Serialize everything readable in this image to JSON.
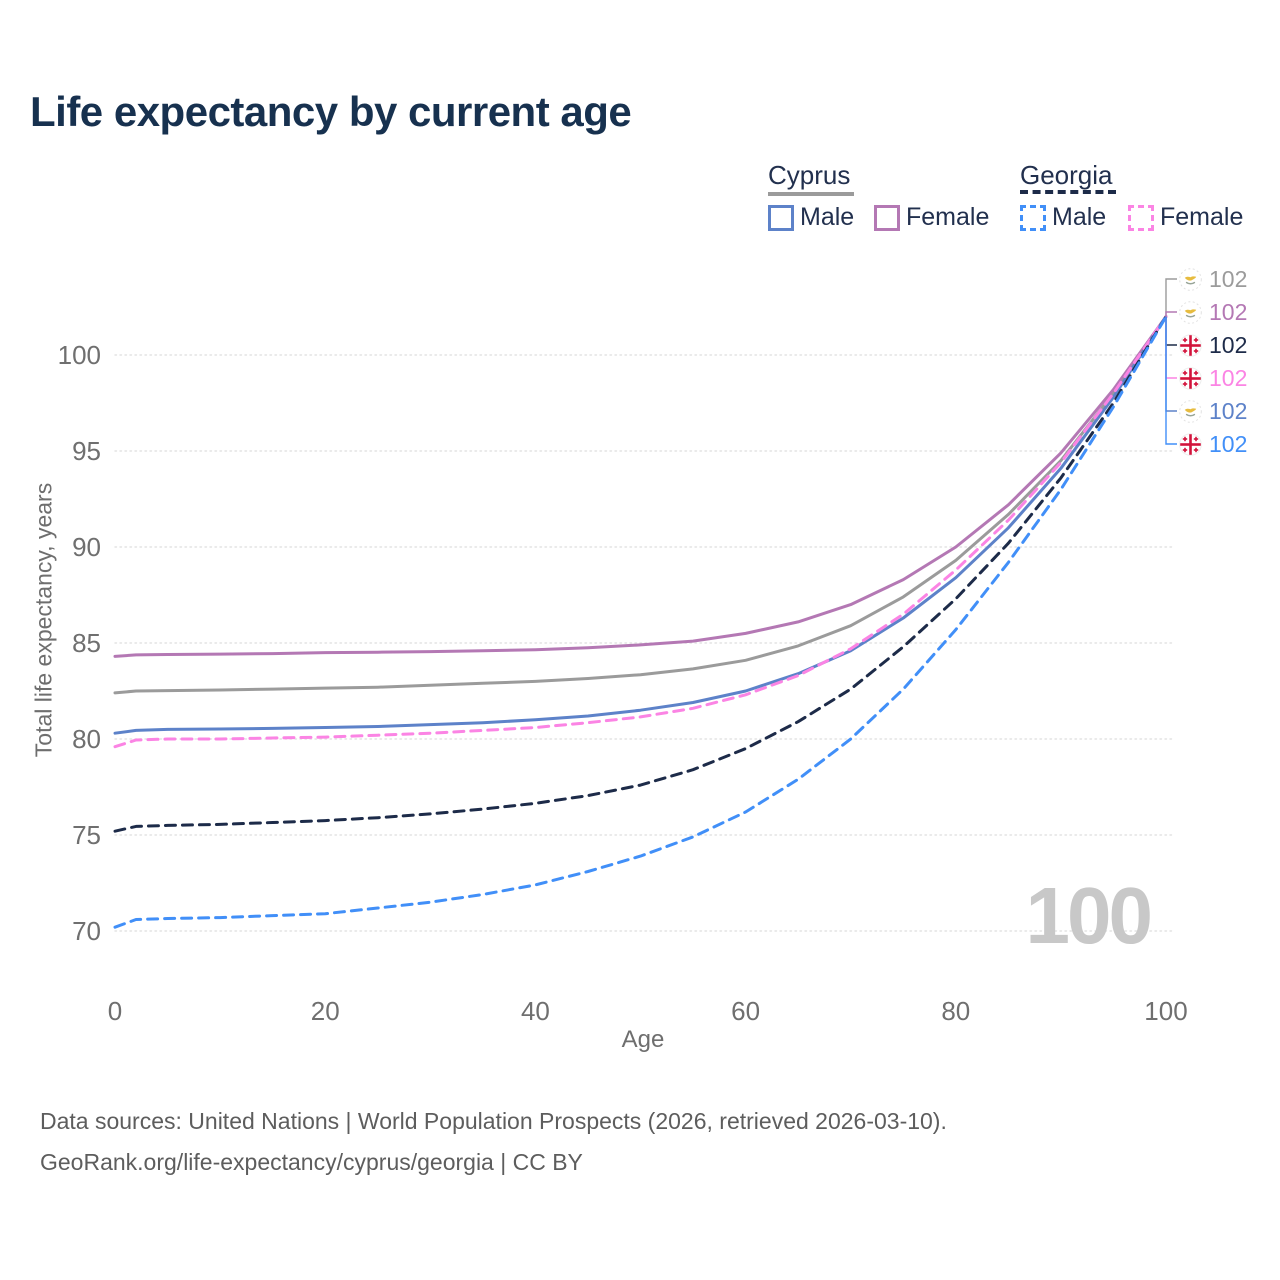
{
  "title": "Life expectancy by current age",
  "watermark_age": "100",
  "axes": {
    "y_title": "Total life expectancy, years",
    "x_title": "Age"
  },
  "colors": {
    "title": "#17314f",
    "tick": "#6f6f6f",
    "grid": "#e3e3e3",
    "watermark": "#c8c8c8",
    "cyprus_total": "#9b9b9b",
    "cyprus_female": "#b478b4",
    "cyprus_male": "#5d82c9",
    "georgia_total": "#1d2b49",
    "georgia_female": "#fb84e4",
    "georgia_male": "#418ff8",
    "georgia_flag_red": "#d2143c",
    "cyprus_flag_copper": "#e7bc3f"
  },
  "legend": {
    "groups": [
      {
        "label": "Cyprus",
        "underline": "solid",
        "color": "#9b9b9b",
        "items": [
          {
            "label": "Male",
            "color": "#5d82c9"
          },
          {
            "label": "Female",
            "color": "#b478b4"
          }
        ]
      },
      {
        "label": "Georgia",
        "underline": "dashed",
        "color": "#1d2b49",
        "items": [
          {
            "label": "Male",
            "color": "#418ff8"
          },
          {
            "label": "Female",
            "color": "#fb84e4"
          }
        ]
      }
    ]
  },
  "endpoint_labels": [
    {
      "flag": "cyprus",
      "series": "Cyprus total",
      "value": "102",
      "color": "#9b9b9b"
    },
    {
      "flag": "cyprus",
      "series": "Cyprus female",
      "value": "102",
      "color": "#b478b4"
    },
    {
      "flag": "georgia",
      "series": "Georgia total",
      "value": "102",
      "color": "#1d2b49"
    },
    {
      "flag": "georgia",
      "series": "Georgia female",
      "value": "102",
      "color": "#fb84e4"
    },
    {
      "flag": "cyprus",
      "series": "Cyprus male",
      "value": "102",
      "color": "#5d82c9"
    },
    {
      "flag": "georgia",
      "series": "Georgia male",
      "value": "102",
      "color": "#418ff8"
    }
  ],
  "source": {
    "line1": "Data sources: United Nations | World Population Prospects (2026, retrieved 2026-03-10).",
    "line2": "GeoRank.org/life-expectancy/cyprus/georgia | CC BY"
  },
  "chart_data": {
    "type": "line",
    "title": "Life expectancy by current age",
    "xlabel": "Age",
    "ylabel": "Total life expectancy, years",
    "xlim": [
      0,
      100
    ],
    "ylim": [
      69,
      102.5
    ],
    "xticks": [
      0,
      20,
      40,
      60,
      80,
      100
    ],
    "yticks": [
      70,
      75,
      80,
      85,
      90,
      95,
      100
    ],
    "grid": true,
    "legend_position": "top-right",
    "x": [
      0,
      2,
      5,
      10,
      15,
      20,
      25,
      30,
      35,
      40,
      45,
      50,
      55,
      60,
      65,
      70,
      75,
      80,
      85,
      90,
      95,
      100
    ],
    "series": [
      {
        "id": "cyprus_total",
        "name": "Cyprus total",
        "style": "solid",
        "color": "#9b9b9b",
        "values": [
          82.4,
          82.5,
          82.52,
          82.55,
          82.6,
          82.65,
          82.7,
          82.8,
          82.9,
          83.0,
          83.15,
          83.35,
          83.65,
          84.1,
          84.85,
          85.9,
          87.4,
          89.3,
          91.7,
          94.5,
          98.0,
          102
        ]
      },
      {
        "id": "cyprus_female",
        "name": "Cyprus female",
        "style": "solid",
        "color": "#b478b4",
        "values": [
          84.3,
          84.38,
          84.4,
          84.42,
          84.45,
          84.5,
          84.52,
          84.55,
          84.6,
          84.65,
          84.75,
          84.9,
          85.1,
          85.5,
          86.1,
          87.0,
          88.3,
          90.0,
          92.2,
          94.9,
          98.2,
          102
        ]
      },
      {
        "id": "cyprus_male",
        "name": "Cyprus male",
        "style": "solid",
        "color": "#5d82c9",
        "values": [
          80.3,
          80.45,
          80.5,
          80.52,
          80.55,
          80.6,
          80.65,
          80.75,
          80.85,
          81.0,
          81.2,
          81.5,
          81.9,
          82.5,
          83.4,
          84.6,
          86.3,
          88.4,
          91.0,
          94.1,
          97.8,
          102
        ]
      },
      {
        "id": "georgia_female",
        "name": "Georgia female",
        "style": "dashed",
        "color": "#fb84e4",
        "values": [
          79.6,
          79.95,
          80.0,
          80.0,
          80.05,
          80.1,
          80.2,
          80.3,
          80.45,
          80.6,
          80.85,
          81.15,
          81.6,
          82.3,
          83.3,
          84.7,
          86.5,
          88.8,
          91.4,
          94.4,
          98.0,
          102
        ]
      },
      {
        "id": "georgia_total",
        "name": "Georgia total",
        "style": "dashed",
        "color": "#1d2b49",
        "values": [
          75.2,
          75.45,
          75.5,
          75.55,
          75.65,
          75.75,
          75.9,
          76.1,
          76.35,
          76.65,
          77.05,
          77.6,
          78.4,
          79.5,
          80.9,
          82.6,
          84.8,
          87.3,
          90.2,
          93.6,
          97.5,
          102
        ]
      },
      {
        "id": "georgia_male",
        "name": "Georgia male",
        "style": "dashed",
        "color": "#418ff8",
        "values": [
          70.2,
          70.6,
          70.65,
          70.7,
          70.8,
          70.9,
          71.2,
          71.5,
          71.9,
          72.4,
          73.1,
          73.9,
          74.9,
          76.2,
          77.9,
          80.0,
          82.6,
          85.7,
          89.2,
          93.0,
          97.3,
          102
        ]
      }
    ]
  }
}
